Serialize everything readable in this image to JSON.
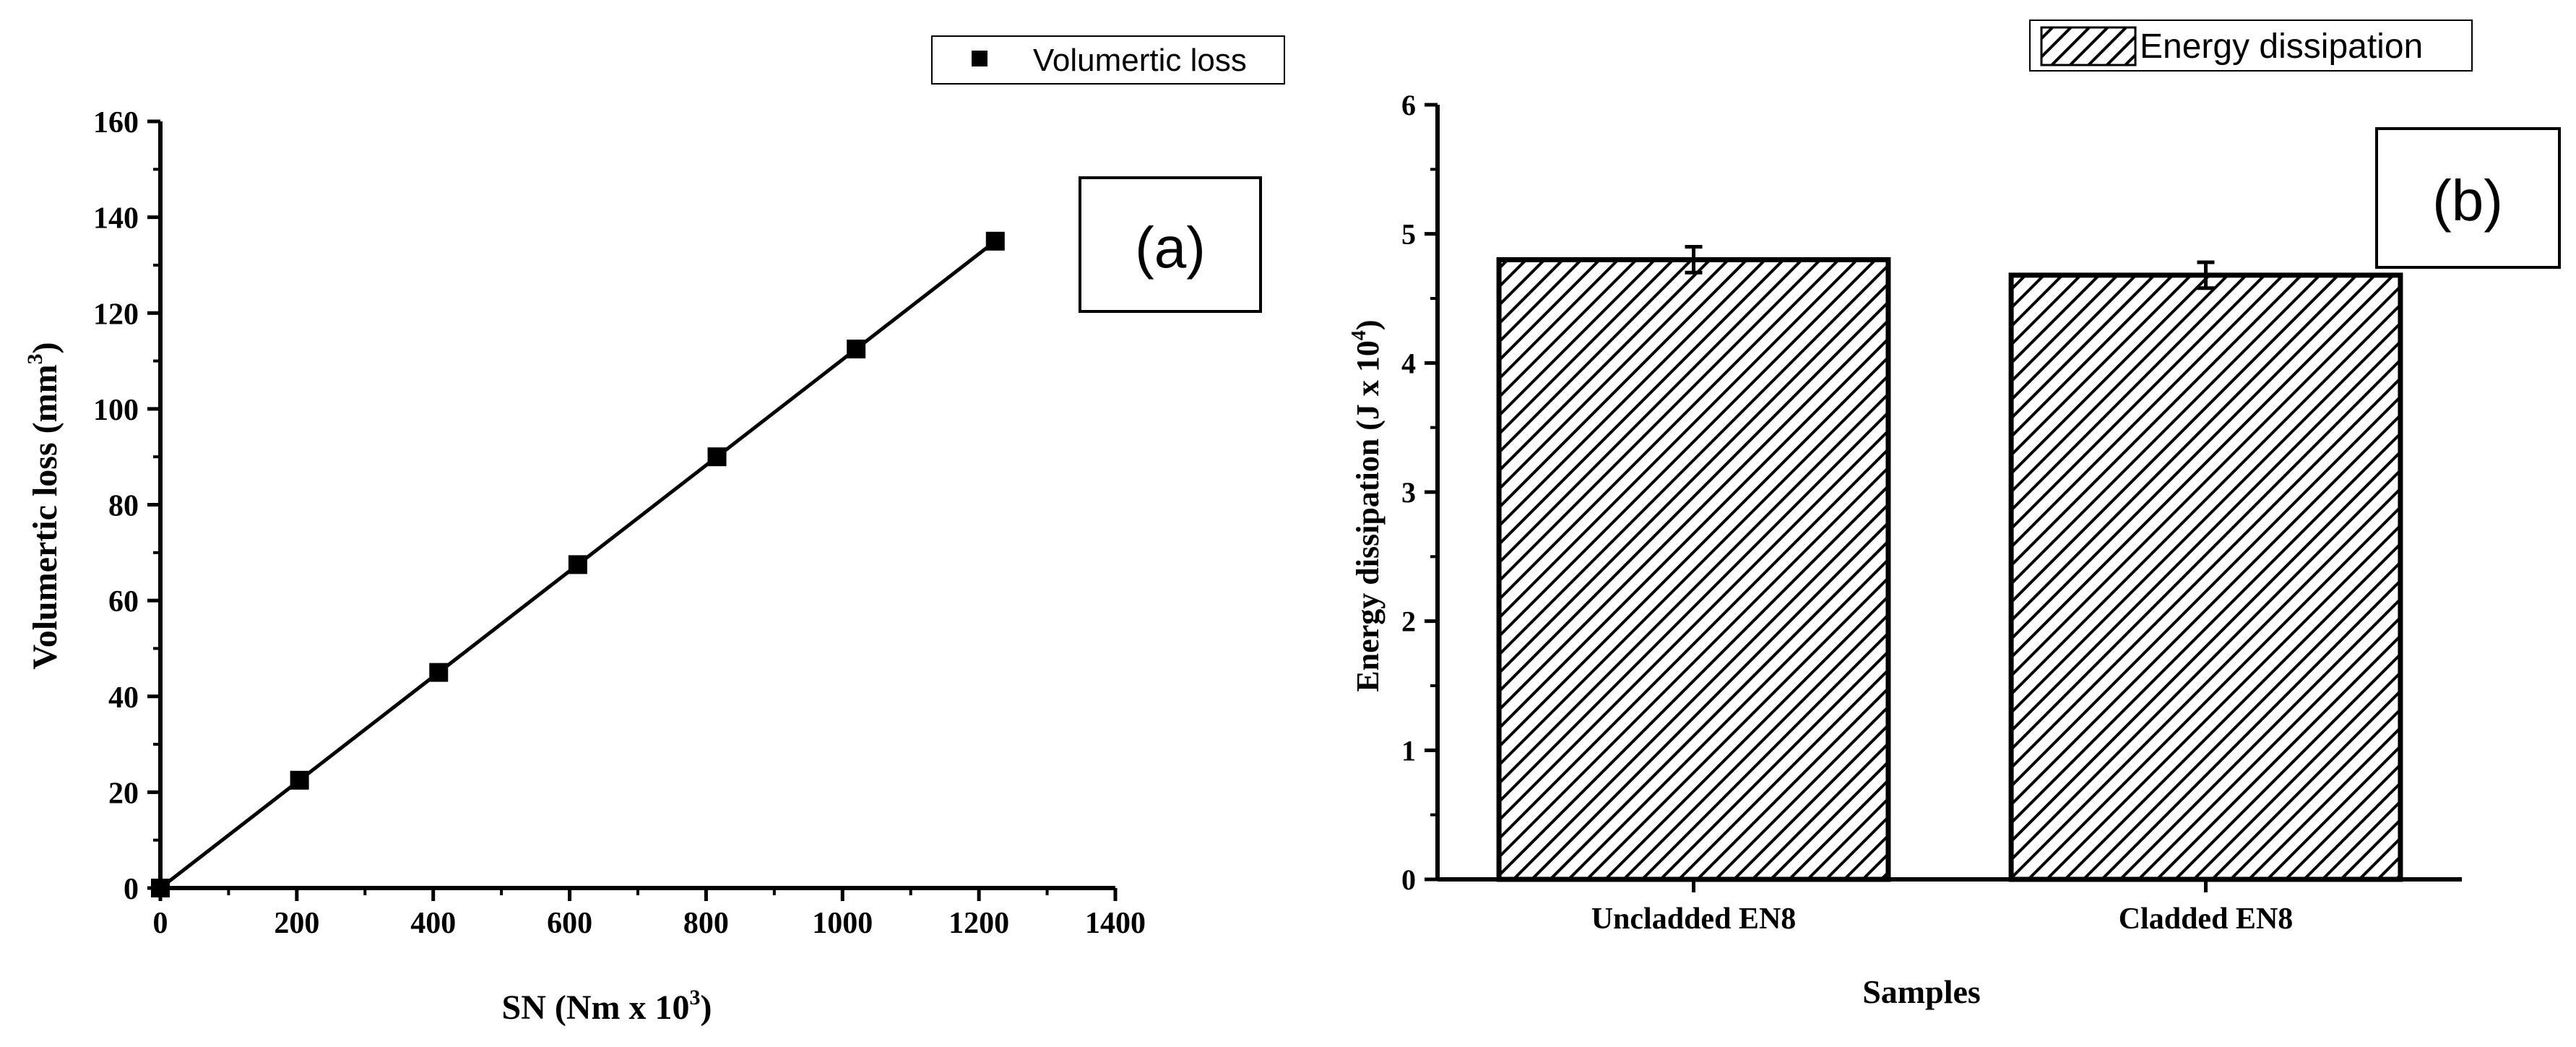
{
  "chart_data": [
    {
      "type": "line",
      "panel_label": "(a)",
      "xlabel": "SN (Nm x 10",
      "xlabel_sup": "3",
      "xlabel_tail": ")",
      "ylabel": "Volumertic loss (mm",
      "ylabel_sup": "3",
      "ylabel_tail": ")",
      "xlim": [
        0,
        1400
      ],
      "ylim": [
        0,
        160
      ],
      "x_ticks": [
        "0",
        "200",
        "400",
        "600",
        "800",
        "1000",
        "1200",
        "1400"
      ],
      "y_ticks": [
        "0",
        "20",
        "40",
        "60",
        "80",
        "100",
        "120",
        "140",
        "160"
      ],
      "legend_position": "top-right",
      "series": [
        {
          "name": "Volumertic loss",
          "color": "#000000",
          "marker": "square",
          "x": [
            0,
            204,
            408,
            612,
            816,
            1020,
            1224
          ],
          "y": [
            0,
            22.5,
            45,
            67.5,
            90,
            112.5,
            135
          ]
        }
      ],
      "grid": false
    },
    {
      "type": "bar",
      "panel_label": "(b)",
      "categories": [
        "Uncladded EN8",
        "Cladded EN8"
      ],
      "series": [
        {
          "name": "Energy dissipation",
          "values": [
            4.8,
            4.68
          ],
          "errors": [
            0.1,
            0.1
          ],
          "pattern": "diagonal-hatch",
          "color": "#000000"
        }
      ],
      "xlabel": "Samples",
      "ylabel": "Energy dissipation (J x 10",
      "ylabel_sup": "4",
      "ylabel_tail": ")",
      "ylim": [
        0,
        6
      ],
      "y_ticks": [
        "0",
        "1",
        "2",
        "3",
        "4",
        "5",
        "6"
      ],
      "legend_position": "top-right",
      "grid": false
    }
  ]
}
